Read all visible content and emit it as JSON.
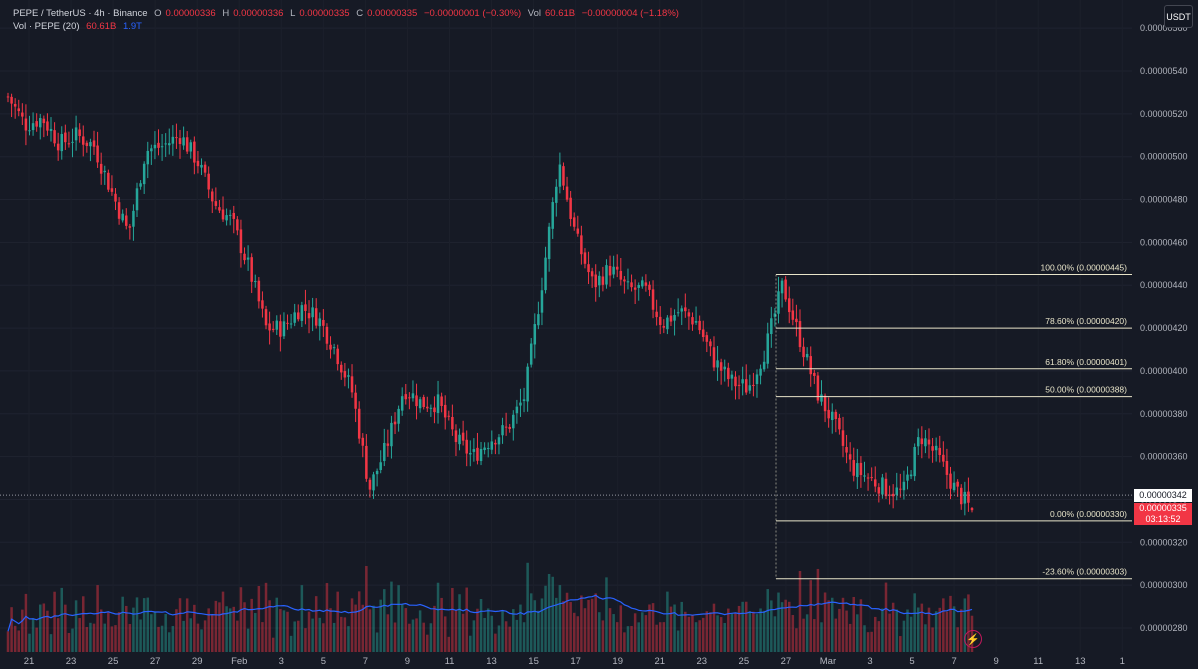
{
  "header": {
    "symbol": "PEPE / TetherUS · 4h · Binance",
    "o_label": "O",
    "o_value": "0.00000336",
    "h_label": "H",
    "h_value": "0.00000336",
    "l_label": "L",
    "l_value": "0.00000335",
    "c_label": "C",
    "c_value": "0.00000335",
    "change": "−0.00000001 (−0.30%)",
    "vol_label": "Vol",
    "vol_value": "60.61B",
    "vol_change": "−0.00000004 (−1.18%)",
    "vol_indicator": "Vol · PEPE (20)",
    "vol_indicator_v1": "60.61B",
    "vol_indicator_v2": "1.9T"
  },
  "currency_button": "USDT",
  "price_axis": {
    "ticks": [
      "0.00000560",
      "0.00000540",
      "0.00000520",
      "0.00000500",
      "0.00000480",
      "0.00000460",
      "0.00000440",
      "0.00000420",
      "0.00000400",
      "0.00000380",
      "0.00000360",
      "0.00000340",
      "0.00000320",
      "0.00000300",
      "0.00000280"
    ],
    "tick_values": [
      560,
      540,
      520,
      500,
      480,
      460,
      440,
      420,
      400,
      380,
      360,
      340,
      320,
      300,
      280
    ],
    "dotted_price_label": "0.00000342",
    "dotted_price": 342,
    "last_price_label": "0.00000335",
    "countdown": "03:13:52"
  },
  "time_axis": {
    "labels": [
      "21",
      "23",
      "25",
      "27",
      "29",
      "Feb",
      "3",
      "5",
      "7",
      "9",
      "11",
      "13",
      "15",
      "17",
      "19",
      "21",
      "23",
      "25",
      "27",
      "Mar",
      "3",
      "5",
      "7",
      "9",
      "11",
      "13",
      "1"
    ]
  },
  "fibonacci": [
    {
      "label": "100.00% (0.00000445)",
      "price": 445
    },
    {
      "label": "78.60% (0.00000420)",
      "price": 420
    },
    {
      "label": "61.80% (0.00000401)",
      "price": 401
    },
    {
      "label": "50.00% (0.00000388)",
      "price": 388
    },
    {
      "label": "0.00% (0.00000330)",
      "price": 330
    },
    {
      "label": "-23.60% (0.00000303)",
      "price": 303
    }
  ],
  "colors": {
    "background": "#161a25",
    "up": "#26a69a",
    "down": "#f23645",
    "fib_line": "#e8e4c9",
    "vol_ma": "#2962ff"
  },
  "chart_data": {
    "type": "candlestick",
    "unit": "1e-8 USDT",
    "ylim": [
      276,
      566
    ],
    "keypoints": [
      {
        "date": "Jan 20",
        "price": 528
      },
      {
        "date": "Jan 21",
        "price": 515
      },
      {
        "date": "Jan 22",
        "price": 518
      },
      {
        "date": "Jan 23",
        "price": 506
      },
      {
        "date": "Jan 24",
        "price": 510
      },
      {
        "date": "Jan 25",
        "price": 505
      },
      {
        "date": "Jan 26",
        "price": 484
      },
      {
        "date": "Jan 26",
        "price": 464
      },
      {
        "date": "Jan 27",
        "price": 503
      },
      {
        "date": "Jan 28",
        "price": 505
      },
      {
        "date": "Jan 29",
        "price": 510
      },
      {
        "date": "Jan 29",
        "price": 498
      },
      {
        "date": "Jan 30",
        "price": 478
      },
      {
        "date": "Jan 31",
        "price": 470
      },
      {
        "date": "Feb 1",
        "price": 448
      },
      {
        "date": "Feb 1",
        "price": 420
      },
      {
        "date": "Feb 2",
        "price": 420
      },
      {
        "date": "Feb 3",
        "price": 430
      },
      {
        "date": "Feb 4",
        "price": 425
      },
      {
        "date": "Feb 5",
        "price": 410
      },
      {
        "date": "Feb 5",
        "price": 390
      },
      {
        "date": "Feb 6",
        "price": 345
      },
      {
        "date": "Feb 6",
        "price": 365
      },
      {
        "date": "Feb 7",
        "price": 392
      },
      {
        "date": "Feb 8",
        "price": 385
      },
      {
        "date": "Feb 9",
        "price": 385
      },
      {
        "date": "Feb 10",
        "price": 368
      },
      {
        "date": "Feb 11",
        "price": 360
      },
      {
        "date": "Feb 12",
        "price": 368
      },
      {
        "date": "Feb 13",
        "price": 373
      },
      {
        "date": "Feb 14",
        "price": 388
      },
      {
        "date": "Feb 14",
        "price": 440
      },
      {
        "date": "Feb 15",
        "price": 498
      },
      {
        "date": "Feb 15",
        "price": 462
      },
      {
        "date": "Feb 16",
        "price": 440
      },
      {
        "date": "Feb 17",
        "price": 448
      },
      {
        "date": "Feb 18",
        "price": 438
      },
      {
        "date": "Feb 19",
        "price": 438
      },
      {
        "date": "Feb 20",
        "price": 422
      },
      {
        "date": "Feb 21",
        "price": 428
      },
      {
        "date": "Feb 22",
        "price": 423
      },
      {
        "date": "Feb 23",
        "price": 405
      },
      {
        "date": "Feb 24",
        "price": 395
      },
      {
        "date": "Feb 25",
        "price": 392
      },
      {
        "date": "Feb 25",
        "price": 410
      },
      {
        "date": "Feb 26",
        "price": 440
      },
      {
        "date": "Feb 26",
        "price": 415
      },
      {
        "date": "Feb 27",
        "price": 390
      },
      {
        "date": "Feb 28",
        "price": 375
      },
      {
        "date": "Mar 1",
        "price": 355
      },
      {
        "date": "Mar 2",
        "price": 350
      },
      {
        "date": "Mar 3",
        "price": 345
      },
      {
        "date": "Mar 4",
        "price": 343
      },
      {
        "date": "Mar 4",
        "price": 370
      },
      {
        "date": "Mar 5",
        "price": 360
      },
      {
        "date": "Mar 6",
        "price": 345
      },
      {
        "date": "Mar 7",
        "price": 335
      }
    ]
  }
}
